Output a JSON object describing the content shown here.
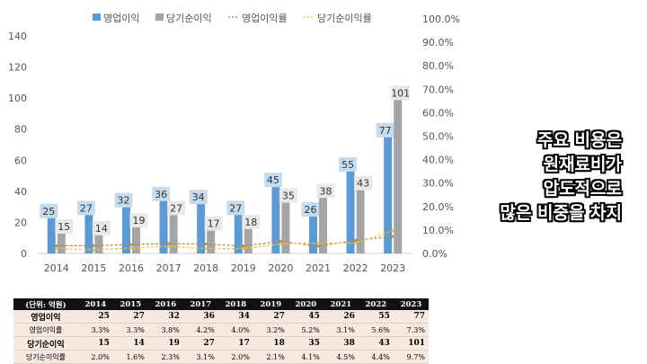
{
  "chart_data": {
    "type": "bar",
    "categories": [
      "2014",
      "2015",
      "2016",
      "2017",
      "2018",
      "2019",
      "2020",
      "2021",
      "2022",
      "2023"
    ],
    "series": [
      {
        "name": "영업이익",
        "kind": "bar",
        "axis": "left",
        "color": "#5b9bd5",
        "values": [
          25,
          27,
          32,
          36,
          34,
          27,
          45,
          26,
          55,
          77
        ]
      },
      {
        "name": "당기순이익",
        "kind": "bar",
        "axis": "left",
        "color": "#a5a5a5",
        "values": [
          15,
          14,
          19,
          27,
          17,
          18,
          35,
          38,
          43,
          101
        ]
      },
      {
        "name": "영업이익률",
        "kind": "line",
        "axis": "right",
        "color": "#c0874f",
        "values": [
          3.3,
          3.3,
          3.8,
          4.2,
          4.0,
          3.2,
          5.2,
          3.1,
          5.6,
          7.3
        ]
      },
      {
        "name": "당기순이익률",
        "kind": "line",
        "axis": "right",
        "color": "#e8c840",
        "values": [
          2.0,
          1.6,
          2.3,
          3.1,
          2.0,
          2.1,
          4.1,
          4.5,
          4.4,
          9.7
        ]
      }
    ],
    "ylim": [
      0,
      140
    ],
    "yticks": [
      "0",
      "20",
      "40",
      "60",
      "80",
      "100",
      "120",
      "140"
    ],
    "y2lim": [
      0,
      100
    ],
    "y2ticks": [
      "0.0%",
      "10.0%",
      "20.0%",
      "30.0%",
      "40.0%",
      "50.0%",
      "60.0%",
      "70.0%",
      "80.0%",
      "90.0%",
      "100.0%"
    ],
    "legend": "top"
  },
  "caption": [
    "주요 비용은",
    "원재료비가",
    "압도적으로",
    "많은 비중을 차지"
  ],
  "table": {
    "header": [
      "(단위: 억원)",
      "2014",
      "2015",
      "2016",
      "2017",
      "2018",
      "2019",
      "2020",
      "2021",
      "2022",
      "2023"
    ],
    "rows": [
      [
        "영업이익",
        "25",
        "27",
        "32",
        "36",
        "34",
        "27",
        "45",
        "26",
        "55",
        "77"
      ],
      [
        "영업이익률",
        "3.3%",
        "3.3%",
        "3.8%",
        "4.2%",
        "4.0%",
        "3.2%",
        "5.2%",
        "3.1%",
        "5.6%",
        "7.3%"
      ],
      [
        "당기순이익",
        "15",
        "14",
        "19",
        "27",
        "17",
        "18",
        "35",
        "38",
        "43",
        "101"
      ],
      [
        "당기순이익률",
        "2.0%",
        "1.6%",
        "2.3%",
        "3.1%",
        "2.0%",
        "2.1%",
        "4.1%",
        "4.5%",
        "4.4%",
        "9.7%"
      ]
    ]
  }
}
